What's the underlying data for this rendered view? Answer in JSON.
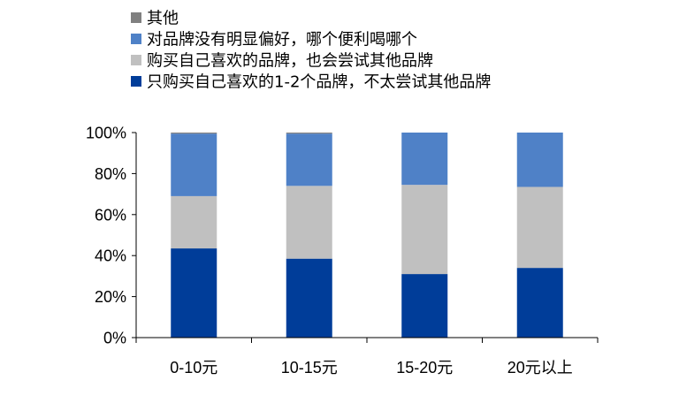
{
  "chart_data": {
    "type": "bar",
    "stacked": true,
    "categories": [
      "0-10元",
      "10-15元",
      "15-20元",
      "20元以上"
    ],
    "series": [
      {
        "name": "只购买自己喜欢的1-2个品牌，不太尝试其他品牌",
        "color": "#003D99",
        "values": [
          43.5,
          38.5,
          31,
          34
        ]
      },
      {
        "name": "购买自己喜欢的品牌，也会尝试其他品牌",
        "color": "#C0C0C0",
        "values": [
          25.5,
          35.5,
          43.5,
          39.5
        ]
      },
      {
        "name": "对品牌没有明显偏好，哪个便利喝哪个",
        "color": "#4F81C7",
        "values": [
          30.5,
          25.5,
          25.5,
          26.5
        ]
      },
      {
        "name": "其他",
        "color": "#808080",
        "values": [
          0.5,
          0.5,
          0,
          0
        ]
      }
    ],
    "legend_order": [
      3,
      2,
      1,
      0
    ],
    "yticks": [
      "0%",
      "20%",
      "40%",
      "60%",
      "80%",
      "100%"
    ],
    "ylim": [
      0,
      100
    ],
    "legend_position": "top-left",
    "grid": false
  }
}
